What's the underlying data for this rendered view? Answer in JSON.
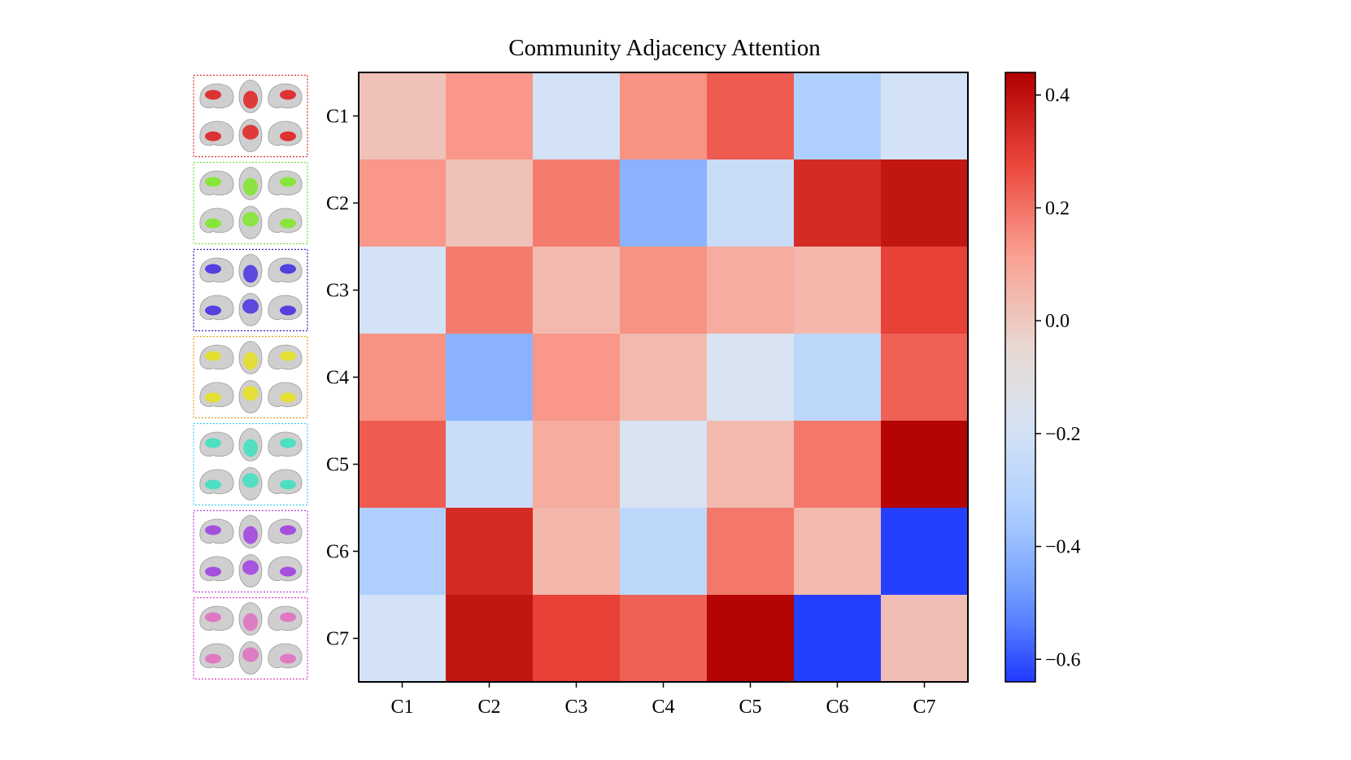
{
  "chart_data": {
    "type": "heatmap",
    "title": "Community Adjacency Attention",
    "xlabel": "",
    "ylabel": "",
    "x_categories": [
      "C1",
      "C2",
      "C3",
      "C4",
      "C5",
      "C6",
      "C7"
    ],
    "y_categories": [
      "C1",
      "C2",
      "C3",
      "C4",
      "C5",
      "C6",
      "C7"
    ],
    "values": [
      [
        0.02,
        0.13,
        -0.2,
        0.14,
        0.24,
        -0.33,
        -0.2
      ],
      [
        0.13,
        0.02,
        0.18,
        -0.42,
        -0.24,
        0.34,
        0.39
      ],
      [
        -0.2,
        0.18,
        0.04,
        0.14,
        0.08,
        0.05,
        0.29
      ],
      [
        0.14,
        -0.42,
        0.13,
        0.04,
        -0.17,
        -0.28,
        0.23
      ],
      [
        0.24,
        -0.24,
        0.08,
        -0.17,
        0.04,
        0.19,
        0.43
      ],
      [
        -0.33,
        0.34,
        0.05,
        -0.28,
        0.19,
        0.04,
        -0.63
      ],
      [
        -0.2,
        0.39,
        0.29,
        0.23,
        0.43,
        -0.63,
        0.03
      ]
    ],
    "colormap": "coolwarm",
    "colorbar": {
      "vmin": -0.64,
      "vmax": 0.44,
      "ticks": [
        -0.6,
        -0.4,
        -0.2,
        0.0,
        0.2,
        0.4
      ],
      "tick_labels": [
        "−0.6",
        "−0.4",
        "−0.2",
        "0.0",
        "0.2",
        "0.4"
      ]
    },
    "grid": false,
    "community_colors": [
      "#e02020",
      "#7fe82a",
      "#4630e0",
      "#e6e020",
      "#3ee0c0",
      "#a040e0",
      "#e070c0"
    ],
    "community_box_colors": [
      "#e03030",
      "#70e040",
      "#3020c0",
      "#e0a020",
      "#40d0f0",
      "#c040e0",
      "#e040c0"
    ]
  }
}
